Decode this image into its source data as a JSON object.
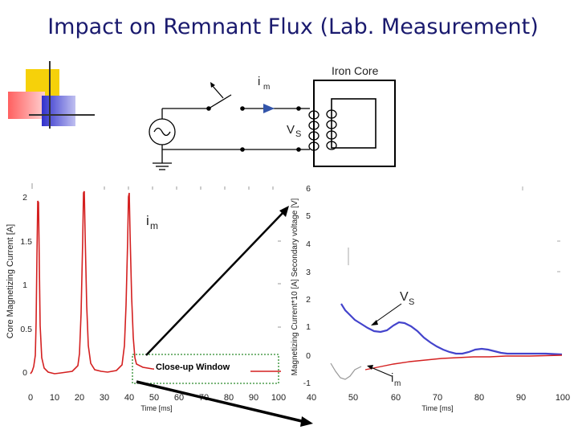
{
  "slide": {
    "title": "Impact on Remnant Flux (Lab. Measurement)"
  },
  "circuit": {
    "core_label": "Iron Core",
    "current_label": "i",
    "current_sub": "m",
    "voltage_label": "V",
    "voltage_sub": "S"
  },
  "left_plot": {
    "ylabel": "Core Magnetizing Current [A]",
    "xlabel": "Time [ms]",
    "yticks": [
      "0",
      "0.5",
      "1",
      "1.5",
      "2"
    ],
    "xticks": [
      "0",
      "10",
      "20",
      "30",
      "40",
      "50",
      "60",
      "70",
      "80",
      "90",
      "100"
    ],
    "trace_label": "i",
    "trace_sub": "m",
    "window_label": "Close-up Window"
  },
  "right_plot": {
    "ylabel": "Magnetizing Current*10 [A]   Secondary voltage [V]",
    "xlabel": "Time [ms]",
    "yticks": [
      "-1",
      "0",
      "1",
      "2",
      "3",
      "4",
      "5",
      "6"
    ],
    "xticks": [
      "40",
      "50",
      "60",
      "70",
      "80",
      "90",
      "100"
    ],
    "vs_label": "V",
    "vs_sub": "S",
    "im_label": "i",
    "im_sub": "m"
  },
  "colors": {
    "title": "#1a1a6e",
    "current_trace": "#d42020",
    "voltage_trace": "#4444cc",
    "window": "#2a8a2a",
    "arrow": "#3355aa"
  }
}
